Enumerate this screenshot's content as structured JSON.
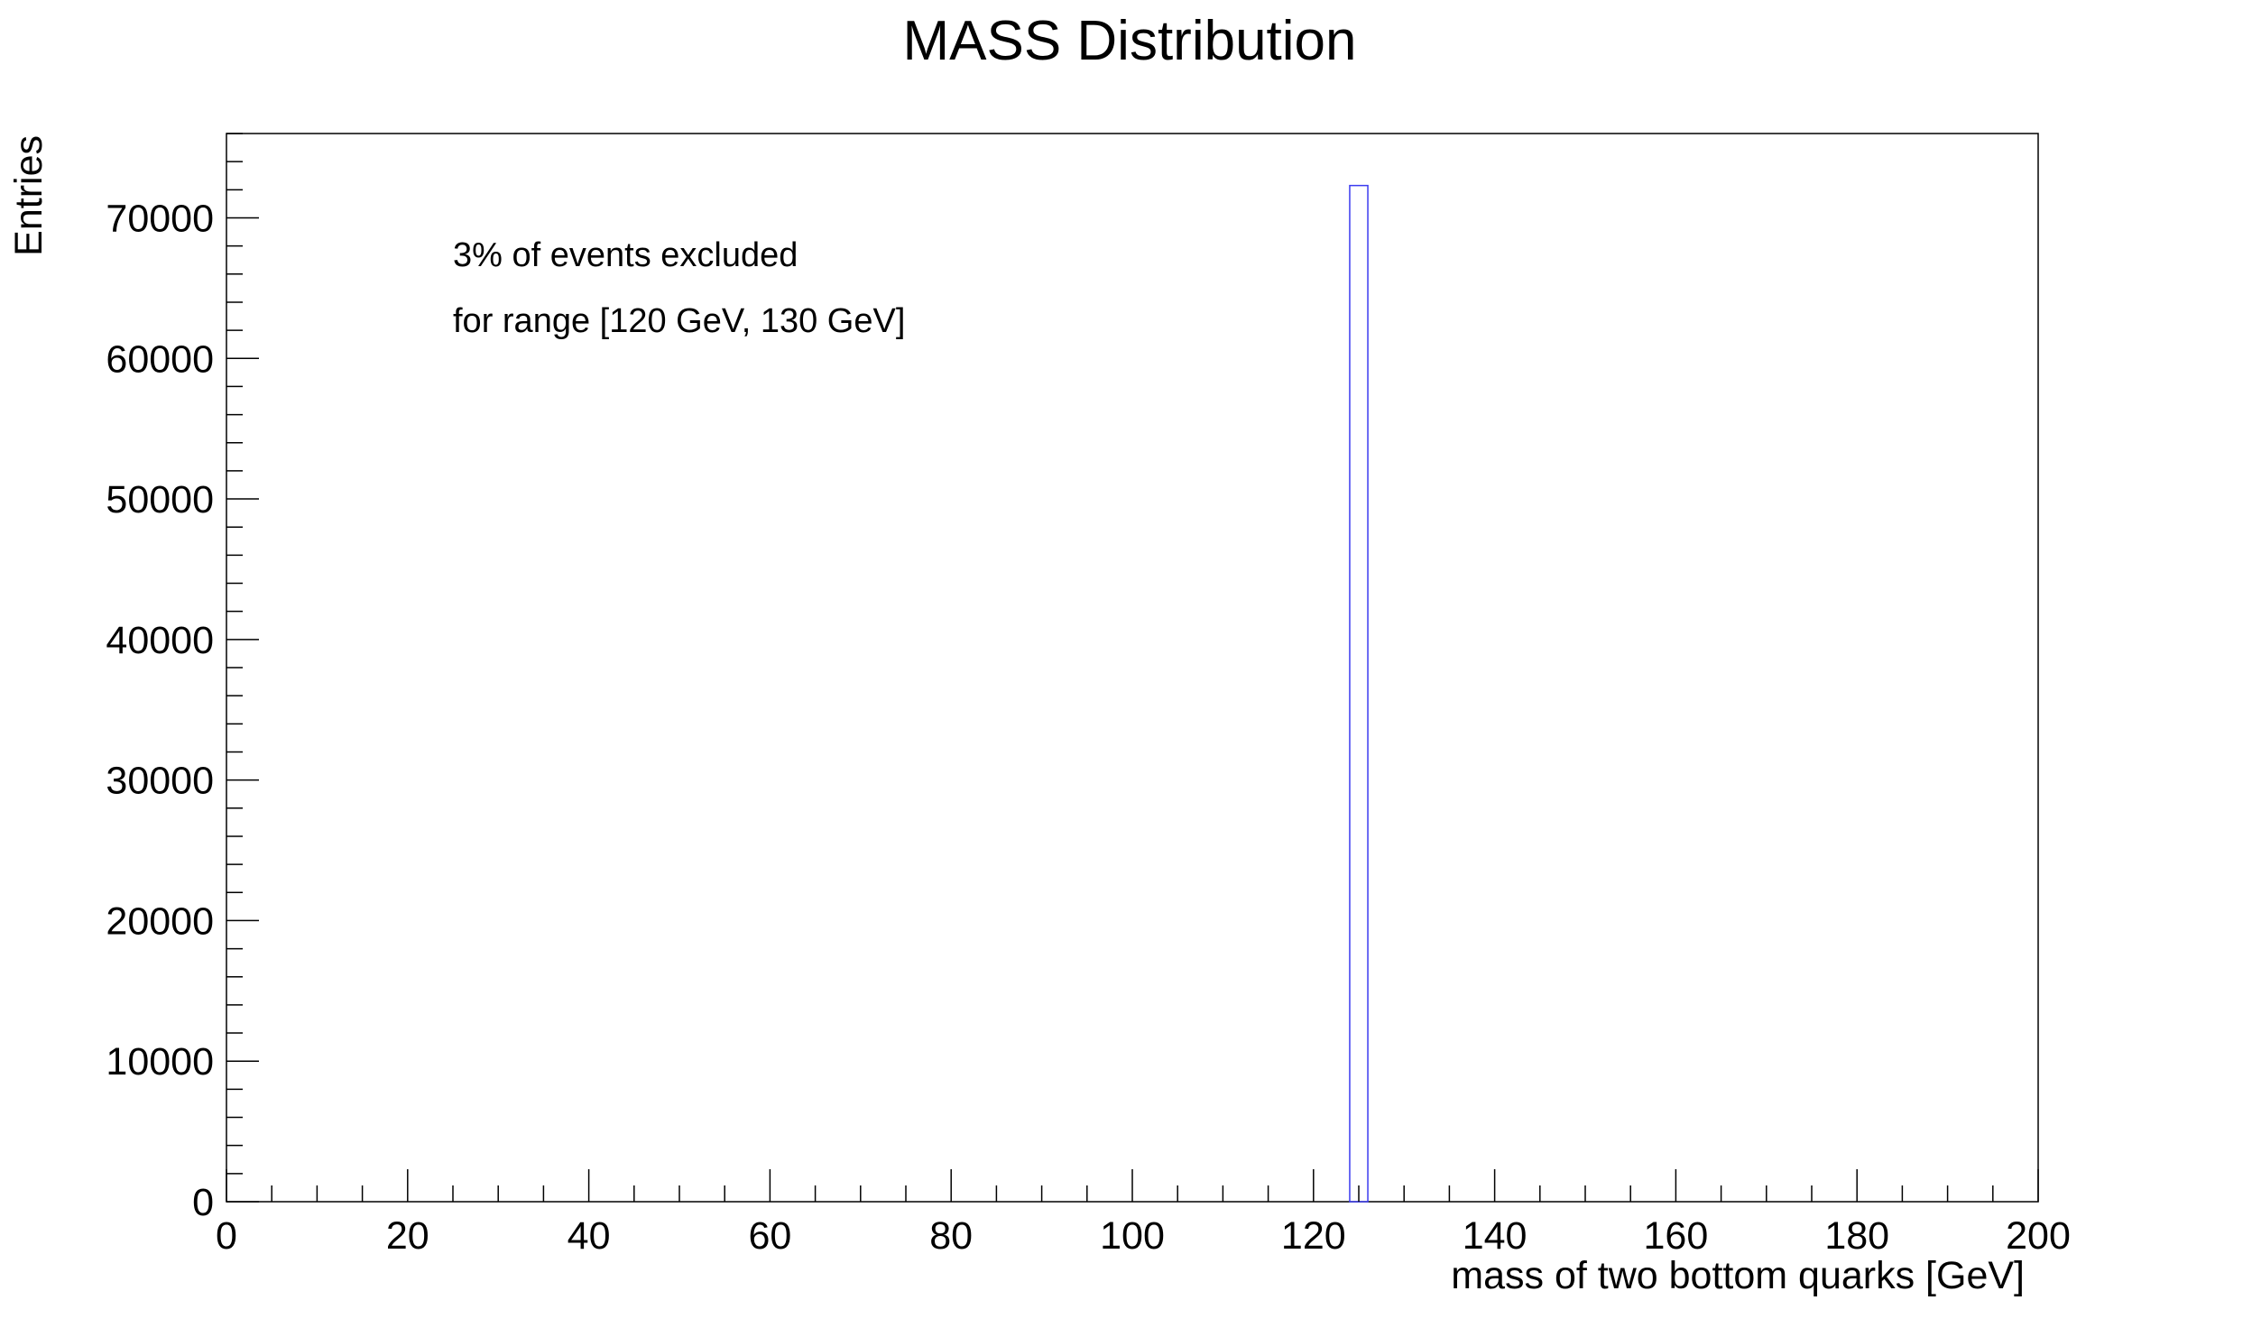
{
  "chart_data": {
    "type": "bar",
    "title": "MASS Distribution",
    "xlabel": "mass of two bottom quarks [GeV]",
    "ylabel": "Entries",
    "xlim": [
      0,
      200
    ],
    "ylim": [
      0,
      76000
    ],
    "x_ticks": [
      0,
      20,
      40,
      60,
      80,
      100,
      120,
      140,
      160,
      180,
      200
    ],
    "x_tick_labels": [
      "0",
      "20",
      "40",
      "60",
      "80",
      "100",
      "120",
      "140",
      "160",
      "180",
      "200"
    ],
    "y_ticks": [
      0,
      10000,
      20000,
      30000,
      40000,
      50000,
      60000,
      70000
    ],
    "y_tick_labels": [
      "0",
      "10000",
      "20000",
      "30000",
      "40000",
      "50000",
      "60000",
      "70000"
    ],
    "grid": false,
    "bins": [
      {
        "low": 124,
        "high": 126,
        "value": 72300
      }
    ],
    "bar_color": "#3c3cf0",
    "annotations": [
      "3% of events excluded",
      "for range [120 GeV, 130 GeV]"
    ]
  }
}
